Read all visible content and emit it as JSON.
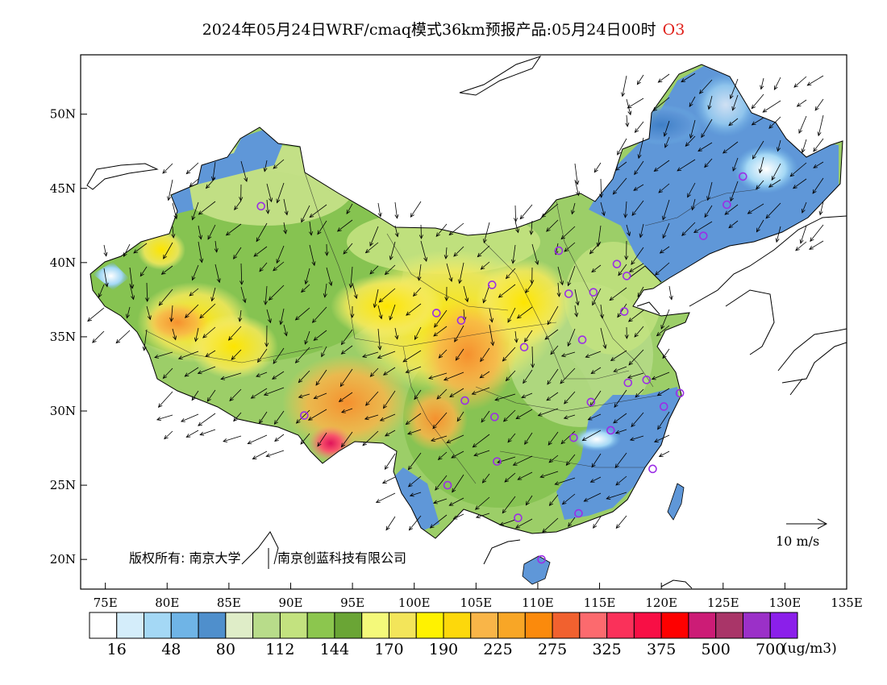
{
  "title": {
    "main": "2024年05月24日WRF/cmaq模式36km预报产品:05月24日00时",
    "pollutant": "O3"
  },
  "map": {
    "lat_labels": [
      "50N",
      "45N",
      "40N",
      "35N",
      "30N",
      "25N",
      "20N"
    ],
    "lat_values": [
      50,
      45,
      40,
      35,
      30,
      25,
      20
    ],
    "lon_labels": [
      "75E",
      "80E",
      "85E",
      "90E",
      "95E",
      "100E",
      "105E",
      "110E",
      "115E",
      "120E",
      "125E",
      "130E",
      "135E"
    ],
    "lon_values": [
      75,
      80,
      85,
      90,
      95,
      100,
      105,
      110,
      115,
      120,
      125,
      130,
      135
    ],
    "extent": {
      "lon": [
        73,
        135
      ],
      "lat": [
        18,
        54
      ]
    },
    "copyright_left": "版权所有: 南京大学",
    "copyright_right": "南京创蓝科技有限公司",
    "wind_reference_label": "10 m/s",
    "region_overlays": [
      {
        "name": "northeast-high-blue",
        "level": "low-ozone",
        "color": "#5f97d8"
      },
      {
        "name": "southeast-coast-blue",
        "level": "low-ozone",
        "color": "#5f97d8"
      },
      {
        "name": "tibet-southeast-hotspot",
        "level": "very-high",
        "color": "#f2375b"
      }
    ]
  },
  "colorbar": {
    "colors": [
      "#ffffff",
      "#d4edfa",
      "#a4d8f5",
      "#6fb4e6",
      "#4f8fcc",
      "#dfedc8",
      "#b8dc8a",
      "#c3e27f",
      "#8cc64e",
      "#6aa535",
      "#f4f97a",
      "#f3e55a",
      "#fff200",
      "#fdd80b",
      "#f9b548",
      "#f8a626",
      "#fb8a0c",
      "#f1612f",
      "#fc6a6e",
      "#fa315a",
      "#f80f45",
      "#fe0000",
      "#cc1c76",
      "#a93568",
      "#9b30c8",
      "#8b1fea"
    ],
    "tick_labels": [
      "16",
      "48",
      "80",
      "112",
      "144",
      "170",
      "190",
      "225",
      "275",
      "325",
      "375",
      "500",
      "700"
    ],
    "units": "(ug/m3)"
  },
  "stations": [
    [
      87.6,
      43.8
    ],
    [
      91.1,
      29.7
    ],
    [
      101.8,
      36.6
    ],
    [
      103.8,
      36.1
    ],
    [
      106.3,
      38.5
    ],
    [
      104.1,
      30.7
    ],
    [
      106.5,
      29.6
    ],
    [
      106.7,
      26.6
    ],
    [
      102.7,
      25.0
    ],
    [
      108.4,
      22.8
    ],
    [
      110.3,
      20.0
    ],
    [
      113.3,
      23.1
    ],
    [
      112.9,
      28.2
    ],
    [
      114.3,
      30.6
    ],
    [
      115.9,
      28.7
    ],
    [
      113.6,
      34.8
    ],
    [
      108.9,
      34.3
    ],
    [
      112.5,
      37.9
    ],
    [
      111.7,
      40.8
    ],
    [
      114.5,
      38.0
    ],
    [
      116.4,
      39.9
    ],
    [
      117.2,
      39.1
    ],
    [
      117.0,
      36.7
    ],
    [
      117.3,
      31.9
    ],
    [
      118.8,
      32.1
    ],
    [
      120.2,
      30.3
    ],
    [
      121.5,
      31.2
    ],
    [
      119.3,
      26.1
    ],
    [
      123.4,
      41.8
    ],
    [
      125.3,
      43.9
    ],
    [
      126.6,
      45.8
    ]
  ]
}
